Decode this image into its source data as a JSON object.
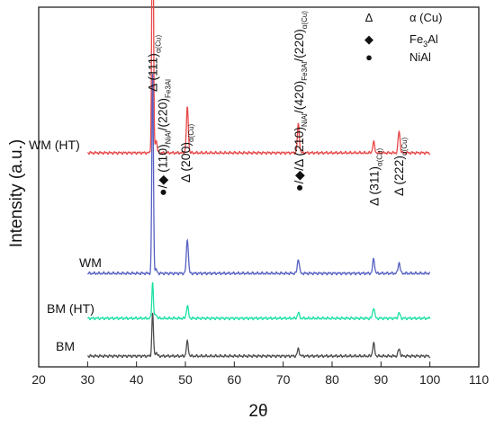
{
  "chart_data": {
    "type": "line",
    "xlabel": "2θ",
    "ylabel": "Intensity (a.u.)",
    "xlim": [
      20,
      110
    ],
    "x_ticks": [
      "20",
      "30",
      "40",
      "50",
      "60",
      "70",
      "80",
      "90",
      "100",
      "110"
    ],
    "grid": false,
    "legend": {
      "placement": "top-right",
      "items": [
        {
          "symbol": "Δ",
          "marker": "triangle",
          "text": "α (Cu)"
        },
        {
          "symbol": "◆",
          "marker": "diamond",
          "text": "Fe3Al",
          "main": "Fe",
          "sub": "3",
          "suffix": "Al"
        },
        {
          "symbol": "●",
          "marker": "circle",
          "text": "NiAl"
        }
      ]
    },
    "peak_positions": [
      43.3,
      44.0,
      50.4,
      73.1,
      88.5,
      93.7
    ],
    "series": [
      {
        "name": "WM (HT)",
        "color": "#e8494a",
        "offset": 0.595,
        "heights": [
          0.845,
          0.035,
          0.125,
          0.08,
          0.03,
          0.06
        ]
      },
      {
        "name": "WM",
        "color": "#5661c2",
        "offset": 0.26,
        "heights": [
          0.555,
          0.01,
          0.095,
          0.04,
          0.04,
          0.03
        ]
      },
      {
        "name": "BM (HT)",
        "color": "#1fe0a4",
        "offset": 0.135,
        "heights": [
          0.1,
          0.01,
          0.035,
          0.015,
          0.03,
          0.015
        ]
      },
      {
        "name": "BM",
        "color": "#4d4d4d",
        "offset": 0.03,
        "heights": [
          0.12,
          0.01,
          0.04,
          0.02,
          0.035,
          0.02
        ]
      }
    ],
    "annotations": [
      {
        "x": 43.3,
        "markers": "Δ",
        "text": "(111)",
        "sub": "α(Cu)"
      },
      {
        "x": 45.3,
        "markers": "●/◆",
        "text": "(110)",
        "sub": "NiAl",
        "text2": "/(220)",
        "sub2": "Fe3Al"
      },
      {
        "x": 50.0,
        "markers": "Δ",
        "text": "(200)",
        "sub": "α(Cu)"
      },
      {
        "x": 73.2,
        "markers": "●/◆/Δ",
        "text": "(210)",
        "sub": "NiAl",
        "text2": "/(420)",
        "sub2": "Fe3Al",
        "text3": "/(220)",
        "sub3": "α(Cu)"
      },
      {
        "x": 88.6,
        "markers": "Δ",
        "text": "(311)",
        "sub": "α(Cu)"
      },
      {
        "x": 93.6,
        "markers": "Δ",
        "text": "(222)",
        "sub": "α(Cu)"
      }
    ]
  }
}
